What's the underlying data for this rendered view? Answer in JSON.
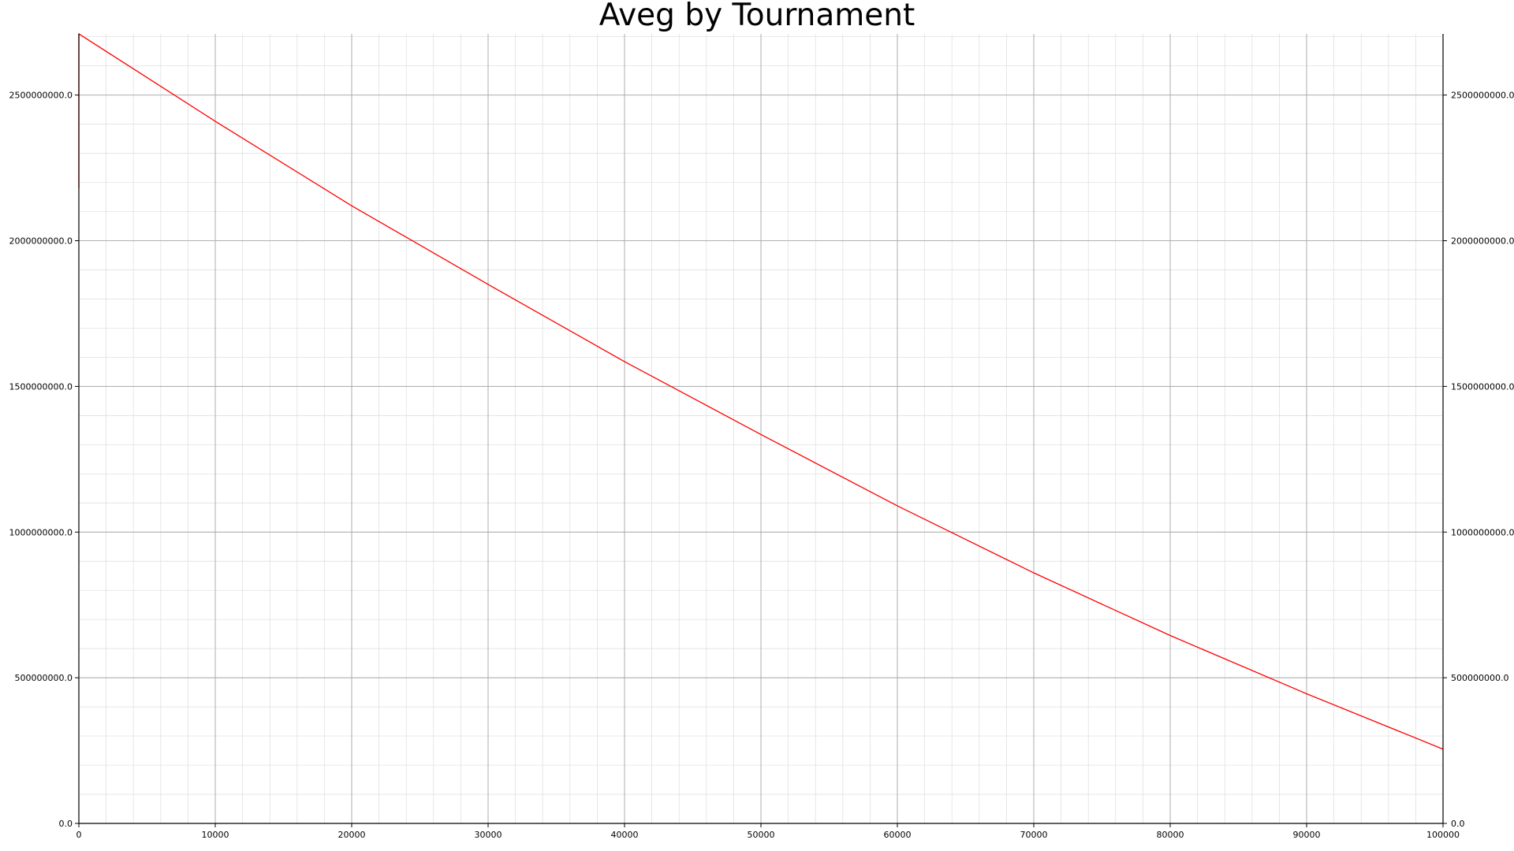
{
  "chart_data": {
    "type": "line",
    "title": "Aveg by Tournament",
    "xlabel": "",
    "ylabel": "",
    "xlim": [
      0,
      100000
    ],
    "ylim": [
      0,
      2710000000
    ],
    "x_ticks": [
      0,
      10000,
      20000,
      30000,
      40000,
      50000,
      60000,
      70000,
      80000,
      90000,
      100000
    ],
    "x_tick_labels": [
      "0",
      "10000",
      "20000",
      "30000",
      "40000",
      "50000",
      "60000",
      "70000",
      "80000",
      "90000",
      "100000"
    ],
    "y_ticks": [
      0,
      500000000,
      1000000000,
      1500000000,
      2000000000,
      2500000000
    ],
    "y_tick_labels": [
      "0.0",
      "500000000.0",
      "1000000000.0",
      "1500000000.0",
      "2000000000.0",
      "2500000000.0"
    ],
    "right_y_axis": true,
    "grid": "major and minor",
    "line_color": "#ff0000",
    "series": [
      {
        "x": [
          0,
          1,
          5000,
          10000,
          20000,
          30000,
          40000,
          50000,
          60000,
          70000,
          80000,
          90000,
          100000
        ],
        "values": [
          2180000000,
          2710000000,
          2560000000,
          2410000000,
          2120000000,
          1850000000,
          1585000000,
          1335000000,
          1090000000,
          860000000,
          645000000,
          445000000,
          255000000
        ]
      }
    ]
  }
}
